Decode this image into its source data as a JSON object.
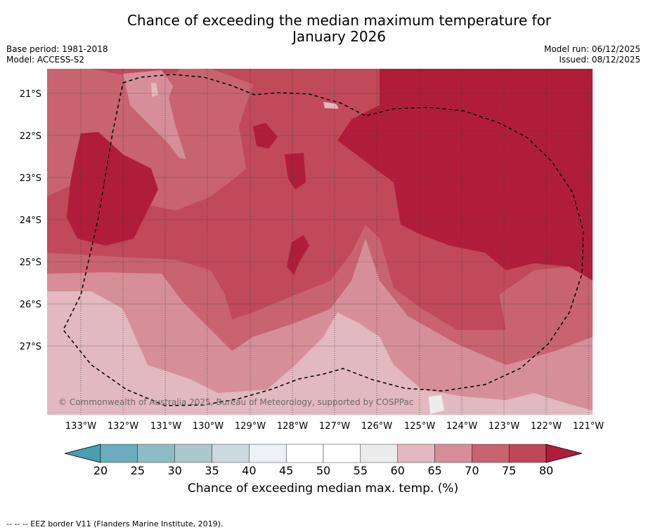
{
  "title": {
    "line1": "Chance of exceeding the median maximum temperature for",
    "line2": "January 2026"
  },
  "meta_left": {
    "base_period": "Base period: 1981-2018",
    "model": "Model: ACCESS-S2"
  },
  "meta_right": {
    "model_run": "Model run: 06/12/2025",
    "issued": "Issued: 08/12/2025"
  },
  "map": {
    "lat_labels": [
      "21°S",
      "22°S",
      "23°S",
      "24°S",
      "25°S",
      "26°S",
      "27°S"
    ],
    "lon_labels": [
      "133°W",
      "132°W",
      "131°W",
      "130°W",
      "129°W",
      "128°W",
      "127°W",
      "126°W",
      "125°W",
      "124°W",
      "123°W",
      "122°W",
      "121°W"
    ],
    "copyright": "© Commonwealth of Australia 2025, Bureau of Meteorology, supported by COSPPac"
  },
  "colorbar": {
    "ticks": [
      "20",
      "25",
      "30",
      "35",
      "40",
      "45",
      "50",
      "55",
      "60",
      "65",
      "70",
      "75",
      "80"
    ],
    "colors": [
      "#4a9fae",
      "#6badbd",
      "#8ebcc6",
      "#abc9cd",
      "#ccdadf",
      "#ebf1f4",
      "#ffffff",
      "#ffffff",
      "#ececec",
      "#e1b9bf",
      "#d68f98",
      "#c7646f",
      "#bd4756",
      "#b01d3a"
    ],
    "label": "Chance of exceeding median max. temp. (%)"
  },
  "footer": "--  --  -- EEZ border V11 (Flanders Marine Institute, 2019)."
}
